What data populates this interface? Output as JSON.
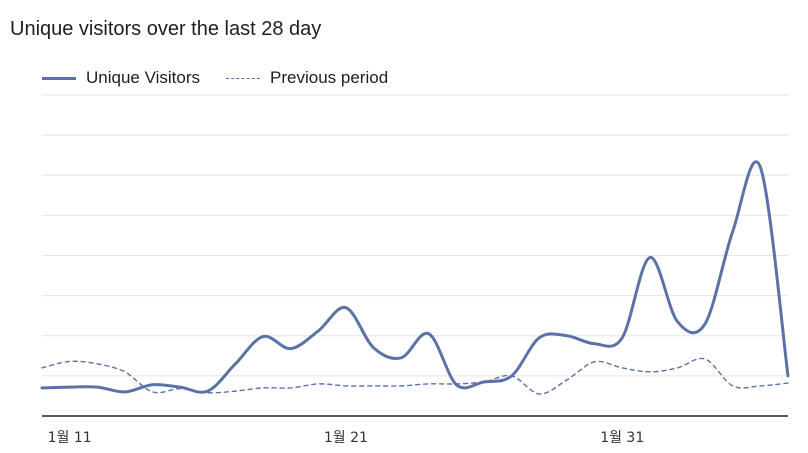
{
  "title": "Unique visitors over the last 28 day",
  "legend": {
    "current": "Unique Visitors",
    "previous": "Previous period"
  },
  "colors": {
    "line": "#5b72a8",
    "grid": "#e5e5e5",
    "axis": "#222222"
  },
  "chart_data": {
    "type": "line",
    "title": "Unique visitors over the last 28 day",
    "xlabel": "",
    "ylabel": "",
    "x": [
      0,
      1,
      2,
      3,
      4,
      5,
      6,
      7,
      8,
      9,
      10,
      11,
      12,
      13,
      14,
      15,
      16,
      17,
      18,
      19,
      20,
      21,
      22,
      23,
      24,
      25,
      26,
      27
    ],
    "x_tick_labels": [
      {
        "x": 1,
        "label": "1월 11"
      },
      {
        "x": 11,
        "label": "1월 21"
      },
      {
        "x": 21,
        "label": "1월 31"
      }
    ],
    "ylim": [
      0,
      8
    ],
    "grid": true,
    "legend_position": "top-left",
    "series": [
      {
        "name": "Unique Visitors",
        "style": "solid",
        "values": [
          0.7,
          0.72,
          0.72,
          0.6,
          0.78,
          0.72,
          0.62,
          1.3,
          1.98,
          1.68,
          2.12,
          2.7,
          1.7,
          1.45,
          2.05,
          0.78,
          0.85,
          1.0,
          1.95,
          2.0,
          1.8,
          1.95,
          3.95,
          2.35,
          2.3,
          4.6,
          6.2,
          1.0
        ]
      },
      {
        "name": "Previous period",
        "style": "dashed",
        "values": [
          1.2,
          1.36,
          1.3,
          1.1,
          0.6,
          0.68,
          0.58,
          0.62,
          0.7,
          0.7,
          0.8,
          0.75,
          0.75,
          0.75,
          0.8,
          0.8,
          0.85,
          1.0,
          0.55,
          0.9,
          1.35,
          1.2,
          1.1,
          1.2,
          1.42,
          0.75,
          0.75,
          0.82
        ]
      }
    ]
  }
}
